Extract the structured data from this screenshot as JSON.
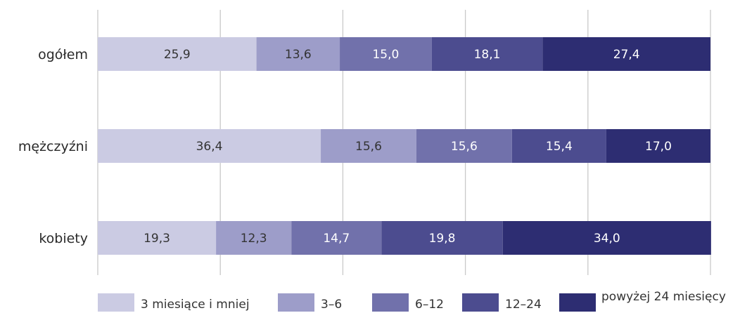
{
  "chart_data": {
    "type": "bar",
    "orientation": "horizontal",
    "stacked": true,
    "title": "",
    "xlabel": "",
    "ylabel": "",
    "xlim": [
      0,
      100
    ],
    "grid": true,
    "legend_position": "bottom",
    "categories": [
      "ogółem",
      "mężczyźni",
      "kobiety"
    ],
    "series": [
      {
        "name": "3 miesiące i mniej",
        "color": "#cbcbe3",
        "text_color": "#333333",
        "values": [
          25.9,
          36.4,
          19.3
        ],
        "labels": [
          "25,9",
          "36,4",
          "19,3"
        ]
      },
      {
        "name": "3–6",
        "color": "#9d9dc9",
        "text_color": "#333333",
        "values": [
          13.6,
          15.6,
          12.3
        ],
        "labels": [
          "13,6",
          "15,6",
          "12,3"
        ]
      },
      {
        "name": "6–12",
        "color": "#7171ab",
        "text_color": "#ffffff",
        "values": [
          15.0,
          15.6,
          14.7
        ],
        "labels": [
          "15,0",
          "15,6",
          "14,7"
        ]
      },
      {
        "name": "12–24",
        "color": "#4c4c8f",
        "text_color": "#ffffff",
        "values": [
          18.1,
          15.4,
          19.8
        ],
        "labels": [
          "18,1",
          "15,4",
          "19,8"
        ]
      },
      {
        "name": "powyżej 24 miesięcy",
        "color": "#2d2d72",
        "text_color": "#ffffff",
        "values": [
          27.4,
          17.0,
          34.0
        ],
        "labels": [
          "27,4",
          "17,0",
          "34,0"
        ]
      }
    ]
  }
}
